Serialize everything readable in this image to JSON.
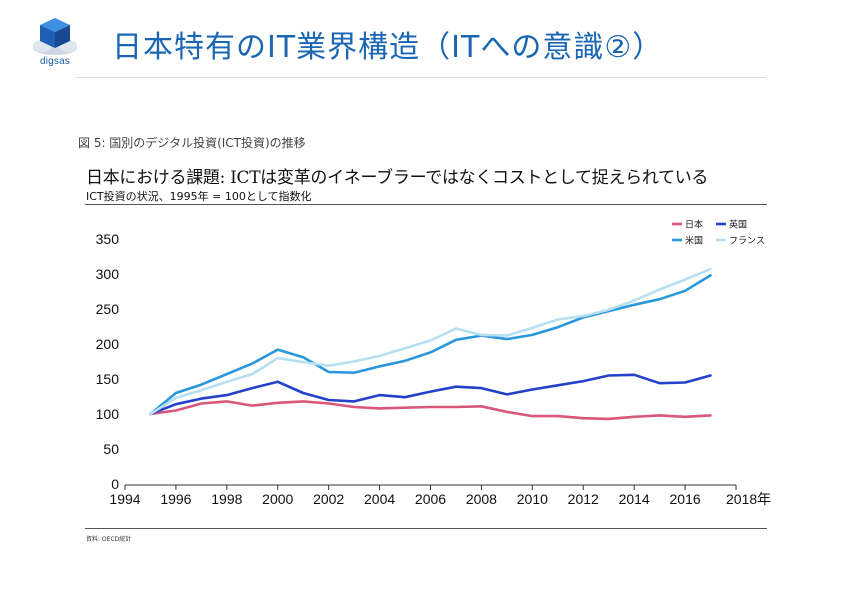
{
  "slide": {
    "title": "日本特有のIT業界構造（ITへの意識②）",
    "logo_text": "digsas"
  },
  "figure": {
    "label": "図 5: 国別のデジタル投資(ICT投資)の推移",
    "source": "資料: OECD統計"
  },
  "colors": {
    "title_blue": "#1a66b3",
    "japan": "#d9577a",
    "uk": "#2442c9",
    "us": "#2a97dc",
    "france": "#b6e0f2"
  },
  "chart_data": {
    "type": "line",
    "title": "日本における課題: ICTは変革のイネーブラーではなくコストとして捉えられている",
    "subtitle": "ICT投資の状況、1995年 = 100として指数化",
    "xlabel": "",
    "ylabel": "",
    "x_unit_label": "2018年",
    "xlim": [
      1994,
      2018
    ],
    "ylim": [
      0,
      350
    ],
    "x_ticks": [
      "1994",
      "1996",
      "1998",
      "2000",
      "2002",
      "2004",
      "2006",
      "2008",
      "2010",
      "2012",
      "2014",
      "2016"
    ],
    "y_ticks": [
      "0",
      "50",
      "100",
      "150",
      "200",
      "250",
      "300",
      "350"
    ],
    "legend_position": "top-right",
    "grid": false,
    "x": [
      1995,
      1996,
      1997,
      1998,
      1999,
      2000,
      2001,
      2002,
      2003,
      2004,
      2005,
      2006,
      2007,
      2008,
      2009,
      2010,
      2011,
      2012,
      2013,
      2014,
      2015,
      2016,
      2017
    ],
    "series": [
      {
        "name": "日本",
        "color": "#d9577a",
        "values": [
          100,
          105,
          115,
          118,
          112,
          116,
          118,
          115,
          110,
          108,
          109,
          110,
          110,
          111,
          103,
          97,
          97,
          94,
          93,
          96,
          98,
          96,
          98
        ]
      },
      {
        "name": "英国",
        "color": "#2442c9",
        "values": [
          100,
          114,
          122,
          127,
          137,
          146,
          130,
          120,
          118,
          127,
          124,
          132,
          139,
          137,
          128,
          135,
          141,
          147,
          155,
          156,
          144,
          145,
          155
        ]
      },
      {
        "name": "米国",
        "color": "#2a97dc",
        "values": [
          100,
          130,
          142,
          157,
          172,
          192,
          181,
          160,
          159,
          168,
          176,
          188,
          206,
          212,
          207,
          213,
          224,
          238,
          247,
          256,
          264,
          276,
          298
        ]
      },
      {
        "name": "フランス",
        "color": "#b6e0f2",
        "values": [
          100,
          123,
          134,
          146,
          157,
          180,
          174,
          169,
          175,
          183,
          194,
          205,
          222,
          213,
          212,
          223,
          235,
          240,
          249,
          262,
          278,
          292,
          307
        ]
      }
    ]
  }
}
